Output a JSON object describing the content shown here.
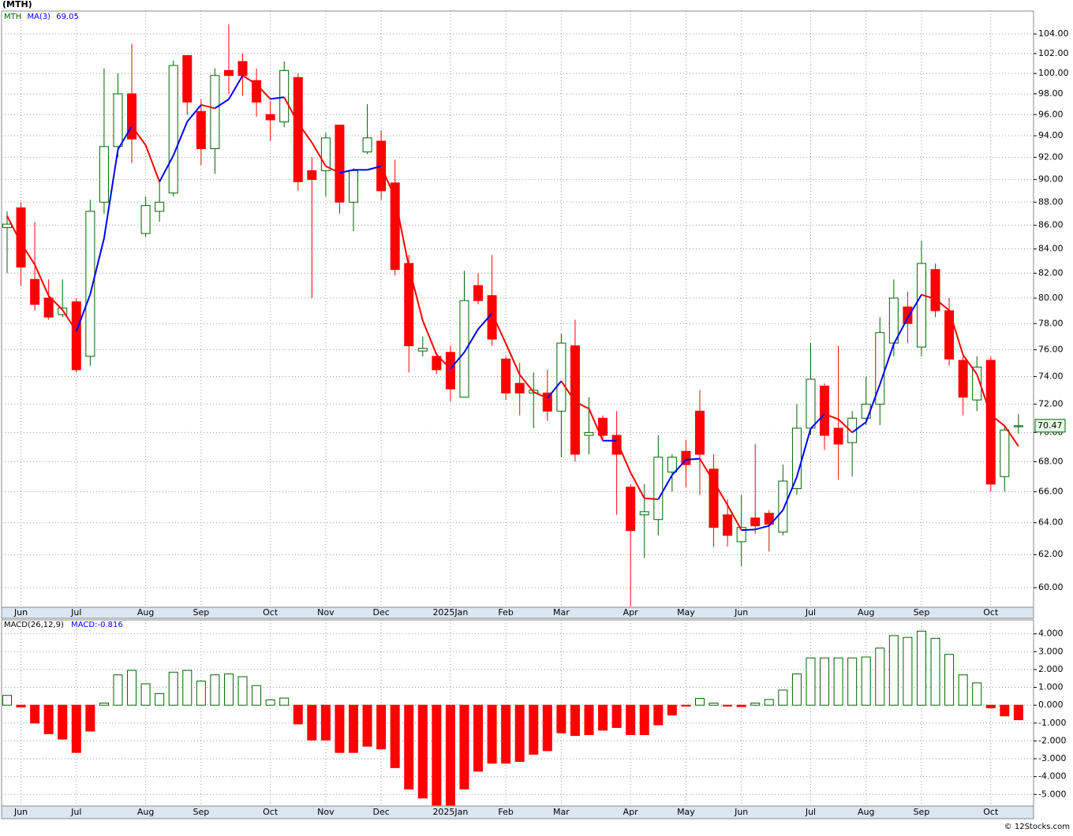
{
  "chart_data": [
    {
      "type": "candlestick",
      "title": "(MTH)",
      "symbol": "MTH",
      "log_scale": true,
      "grid": true,
      "up_color": "#006400",
      "down_color": "#ff0000",
      "categories": [
        null,
        "Jun",
        null,
        null,
        null,
        "Jul",
        null,
        null,
        null,
        null,
        "Aug",
        null,
        null,
        null,
        "Sep",
        null,
        null,
        null,
        null,
        "Oct",
        null,
        null,
        null,
        "Nov",
        null,
        null,
        null,
        "Dec",
        null,
        null,
        null,
        null,
        "2025Jan",
        null,
        null,
        null,
        "Feb",
        null,
        null,
        null,
        "Mar",
        null,
        null,
        null,
        null,
        "Apr",
        null,
        null,
        null,
        "May",
        null,
        null,
        null,
        "Jun",
        null,
        null,
        null,
        null,
        "Jul",
        null,
        null,
        null,
        "Aug",
        null,
        null,
        null,
        "Sep",
        null,
        null,
        null,
        null,
        "Oct",
        null,
        null
      ],
      "open": [
        85.8,
        87.5,
        81.5,
        80,
        78.7,
        79.7,
        75.5,
        88,
        93,
        98,
        85.3,
        87.2,
        88.8,
        101.8,
        96.3,
        92.8,
        100.3,
        101.2,
        99.3,
        96,
        95.3,
        99.6,
        90.8,
        90.8,
        95,
        88,
        92.5,
        93.5,
        89.7,
        82.8,
        75.9,
        75.5,
        75.8,
        72.5,
        81,
        80.2,
        75.3,
        73.5,
        72.8,
        72.8,
        71.5,
        76.3,
        69.8,
        71,
        69.8,
        66.3,
        64.5,
        64.2,
        67.3,
        68.7,
        71.5,
        67.5,
        64.5,
        62.8,
        64.3,
        64.6,
        63.4,
        66.2,
        70.3,
        73.3,
        70.3,
        69.3,
        71,
        72,
        76.5,
        79.3,
        76.2,
        82.3,
        79,
        75.2,
        72.3,
        75.2,
        67,
        70.4
      ],
      "high": [
        87.2,
        88,
        86.3,
        81.5,
        81.5,
        80,
        88.2,
        100.5,
        100,
        103,
        88.5,
        90,
        101.3,
        101.8,
        97.5,
        100.5,
        105,
        102,
        100.5,
        97.3,
        101.2,
        100,
        92,
        94.3,
        95,
        91,
        97,
        94.5,
        91.8,
        83.5,
        77,
        75.8,
        76.3,
        82.2,
        82,
        83.5,
        75.5,
        75,
        74.3,
        74.5,
        77.2,
        78.3,
        72.5,
        71.2,
        71.5,
        66.5,
        66.5,
        69.8,
        68.5,
        69.5,
        73,
        68.5,
        65.5,
        65.8,
        69.2,
        64.8,
        67.8,
        72,
        76.5,
        73.5,
        76.3,
        71.5,
        74,
        78.5,
        81.5,
        80.5,
        84.7,
        82.8,
        80,
        75.5,
        75.5,
        75.5,
        70.5,
        71.3
      ],
      "low": [
        82,
        81,
        79,
        78.3,
        78.5,
        74.3,
        74.8,
        87,
        92,
        91.5,
        85,
        86.3,
        88.5,
        96,
        91.3,
        90.5,
        98,
        97.8,
        95.8,
        93.5,
        94.8,
        89,
        80,
        88.5,
        87,
        85.5,
        92.3,
        88.2,
        81.8,
        74.3,
        75.5,
        74.2,
        72.2,
        72.5,
        79.5,
        76.3,
        72.3,
        71.2,
        70.3,
        70.8,
        68.3,
        68,
        68.5,
        69.4,
        64.5,
        58.9,
        61.8,
        63.2,
        66,
        66.3,
        65.8,
        62.5,
        62.5,
        61.3,
        63.3,
        62.2,
        63.2,
        65.8,
        69.8,
        68.8,
        66.8,
        67,
        70.5,
        70.5,
        75.5,
        76.5,
        75.5,
        78.5,
        74.8,
        71.2,
        71.5,
        66,
        66,
        69.9
      ],
      "close": [
        86.1,
        82.5,
        79.5,
        78.5,
        79.2,
        74.5,
        87.2,
        93,
        98,
        93.7,
        87.7,
        88,
        100.8,
        97.2,
        92.8,
        99.8,
        99.8,
        99.8,
        97.2,
        95.5,
        100.3,
        89.8,
        90,
        93.8,
        88,
        90.8,
        93.8,
        89,
        82.3,
        76.3,
        76.1,
        74.5,
        73.1,
        79.8,
        79.8,
        76.8,
        72.8,
        72.8,
        73,
        71.5,
        76.5,
        68.5,
        70,
        69.8,
        68.5,
        63.5,
        64.7,
        68.3,
        68.3,
        67.8,
        68.5,
        63.7,
        63.2,
        63.7,
        63.8,
        63.9,
        66.7,
        70.3,
        73.8,
        69.8,
        69.2,
        71,
        72,
        77.3,
        80,
        78,
        82.8,
        79,
        75.3,
        72.5,
        74.7,
        66.5,
        70.17,
        70.47
      ],
      "ma": {
        "name": "MA(3)",
        "rising_color": "#0000ff",
        "falling_color": "#ff0000",
        "values": [
          86.8,
          84.5,
          82.7,
          80.17,
          79.07,
          77.4,
          80.3,
          84.9,
          92.73,
          94.9,
          93.13,
          89.8,
          92.17,
          95.33,
          96.93,
          96.6,
          97.47,
          99.8,
          98.93,
          97.5,
          97.67,
          95.2,
          93.37,
          91.2,
          90.6,
          90.87,
          90.87,
          91.2,
          88.37,
          82.53,
          78.23,
          75.63,
          74.57,
          75.8,
          77.57,
          78.8,
          76.47,
          74.13,
          72.87,
          72.43,
          73.67,
          72.17,
          71.67,
          69.43,
          69.43,
          67.27,
          65.57,
          65.5,
          67.1,
          68.13,
          68.2,
          66.67,
          65.13,
          63.53,
          63.57,
          63.8,
          64.8,
          66.97,
          70.27,
          71.3,
          70.93,
          70,
          70.73,
          73.43,
          76.43,
          78.43,
          80.27,
          79.93,
          79.03,
          75.6,
          74.17,
          71.23,
          70.46,
          69.05
        ]
      },
      "ylim": [
        58.84,
        106.4
      ],
      "yticks": [
        {
          "value": 60,
          "label": "60.00"
        },
        {
          "value": 62,
          "label": "62.00"
        },
        {
          "value": 64,
          "label": "64.00"
        },
        {
          "value": 66,
          "label": "66.00"
        },
        {
          "value": 68,
          "label": "68.00"
        },
        {
          "value": 70,
          "label": "70.00"
        },
        {
          "value": 72,
          "label": "72.00"
        },
        {
          "value": 74,
          "label": "74.00"
        },
        {
          "value": 76,
          "label": "76.00"
        },
        {
          "value": 78,
          "label": "78.00"
        },
        {
          "value": 80,
          "label": "80.00"
        },
        {
          "value": 82,
          "label": "82.00"
        },
        {
          "value": 84,
          "label": "84.00"
        },
        {
          "value": 86,
          "label": "86.00"
        },
        {
          "value": 88,
          "label": "88.00"
        },
        {
          "value": 90,
          "label": "90.00"
        },
        {
          "value": 92,
          "label": "92.00"
        },
        {
          "value": 94,
          "label": "94.00"
        },
        {
          "value": 96,
          "label": "96.00"
        },
        {
          "value": 98,
          "label": "98.00"
        },
        {
          "value": 100,
          "label": "100.00"
        },
        {
          "value": 102,
          "label": "102.00"
        },
        {
          "value": 104,
          "label": "104.00"
        }
      ],
      "source": "© 12Stocks.com"
    },
    {
      "type": "histogram",
      "name": "MACD(26,12,9)",
      "value_caption": "MACD:",
      "grid": true,
      "up_color": "#006400",
      "down_color": "#ff0000",
      "values": [
        0.55,
        -0.1,
        -1,
        -1.6,
        -1.9,
        -2.65,
        -1.45,
        0.12,
        1.7,
        1.95,
        1.2,
        0.65,
        1.85,
        1.95,
        1.35,
        1.7,
        1.75,
        1.6,
        1.1,
        0.3,
        0.4,
        -1.05,
        -1.95,
        -1.95,
        -2.65,
        -2.65,
        -2.3,
        -2.45,
        -3.5,
        -4.7,
        -5.2,
        -5.6,
        -5.6,
        -4.7,
        -3.7,
        -3.25,
        -3.25,
        -3.15,
        -2.75,
        -2.55,
        -1.55,
        -1.7,
        -1.65,
        -1.4,
        -1.25,
        -1.65,
        -1.65,
        -1.1,
        -0.55,
        -0.05,
        0.38,
        0.12,
        -0.05,
        -0.08,
        0.12,
        0.32,
        0.85,
        1.75,
        2.65,
        2.65,
        2.65,
        2.65,
        2.7,
        3.2,
        3.9,
        3.8,
        4.15,
        3.75,
        2.85,
        1.7,
        1.25,
        -0.15,
        -0.6,
        -0.816
      ],
      "ylim": [
        -5.65,
        4.78
      ],
      "yticks": [
        {
          "value": 4,
          "label": "4.000"
        },
        {
          "value": 3,
          "label": "3.000"
        },
        {
          "value": 2,
          "label": "2.000"
        },
        {
          "value": 1,
          "label": "1.000"
        },
        {
          "value": 0,
          "label": "0.000"
        },
        {
          "value": -1,
          "label": "-1.000"
        },
        {
          "value": -2,
          "label": "-2.000"
        },
        {
          "value": -3,
          "label": "-3.000"
        },
        {
          "value": -4,
          "label": "-4.000"
        },
        {
          "value": -5,
          "label": "-5.000"
        }
      ]
    }
  ]
}
